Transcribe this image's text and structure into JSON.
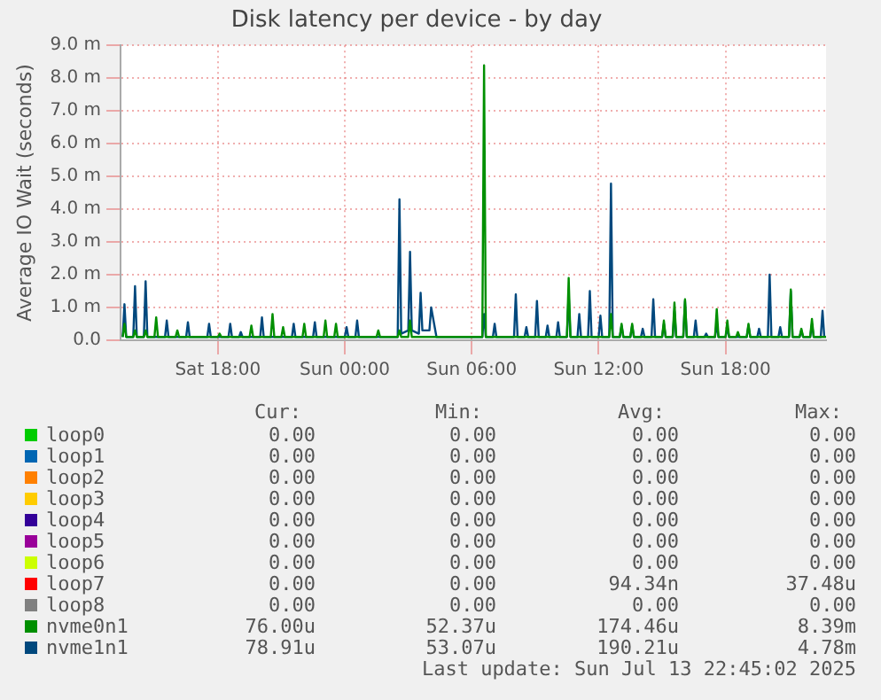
{
  "chart_data": {
    "type": "line",
    "title": "Disk latency per device - by day",
    "ylabel": "Average IO Wait (seconds)",
    "xlim": [
      "2025-07-12T13:24",
      "2025-07-13T22:45"
    ],
    "xticks": [
      {
        "value": "2025-07-12T18:00",
        "label": "Sat 18:00"
      },
      {
        "value": "2025-07-13T00:00",
        "label": "Sun 00:00"
      },
      {
        "value": "2025-07-13T06:00",
        "label": "Sun 06:00"
      },
      {
        "value": "2025-07-13T12:00",
        "label": "Sun 12:00"
      },
      {
        "value": "2025-07-13T18:00",
        "label": "Sun 18:00"
      }
    ],
    "ylim": [
      0,
      9
    ],
    "yticks": [
      {
        "value": 0,
        "label": "0.0"
      },
      {
        "value": 1,
        "label": "1.0 m"
      },
      {
        "value": 2,
        "label": "2.0 m"
      },
      {
        "value": 3,
        "label": "3.0 m"
      },
      {
        "value": 4,
        "label": "4.0 m"
      },
      {
        "value": 5,
        "label": "5.0 m"
      },
      {
        "value": 6,
        "label": "6.0 m"
      },
      {
        "value": 7,
        "label": "7.0 m"
      },
      {
        "value": 8,
        "label": "8.0 m"
      },
      {
        "value": 9,
        "label": "9.0 m"
      }
    ],
    "grid": true,
    "legend": "bottom",
    "series": [
      {
        "name": "loop0",
        "color": "#00cc00"
      },
      {
        "name": "loop1",
        "color": "#0066b3"
      },
      {
        "name": "loop2",
        "color": "#ff8000"
      },
      {
        "name": "loop3",
        "color": "#ffcc00"
      },
      {
        "name": "loop4",
        "color": "#330099"
      },
      {
        "name": "loop5",
        "color": "#990099"
      },
      {
        "name": "loop6",
        "color": "#ccff00"
      },
      {
        "name": "loop7",
        "color": "#ff0000"
      },
      {
        "name": "loop8",
        "color": "#808080"
      },
      {
        "name": "nvme0n1",
        "color": "#008f00",
        "x": [
          "2025-07-12T13:30",
          "2025-07-12T13:35",
          "2025-07-12T13:40",
          "2025-07-12T14:00",
          "2025-07-12T14:05",
          "2025-07-12T14:10",
          "2025-07-12T14:30",
          "2025-07-12T14:35",
          "2025-07-12T14:40",
          "2025-07-12T15:00",
          "2025-07-12T15:05",
          "2025-07-12T15:10",
          "2025-07-12T16:00",
          "2025-07-12T16:05",
          "2025-07-12T16:10",
          "2025-07-12T18:00",
          "2025-07-12T18:05",
          "2025-07-12T18:10",
          "2025-07-12T19:30",
          "2025-07-12T19:35",
          "2025-07-12T19:40",
          "2025-07-12T20:30",
          "2025-07-12T20:35",
          "2025-07-12T20:40",
          "2025-07-12T21:00",
          "2025-07-12T21:05",
          "2025-07-12T21:10",
          "2025-07-12T22:00",
          "2025-07-12T22:05",
          "2025-07-12T22:10",
          "2025-07-12T23:00",
          "2025-07-12T23:05",
          "2025-07-12T23:10",
          "2025-07-12T23:30",
          "2025-07-12T23:35",
          "2025-07-12T23:40",
          "2025-07-13T01:30",
          "2025-07-13T01:35",
          "2025-07-13T01:40",
          "2025-07-13T02:30",
          "2025-07-13T02:35",
          "2025-07-13T02:40",
          "2025-07-13T03:00",
          "2025-07-13T03:05",
          "2025-07-13T03:10",
          "2025-07-13T06:30",
          "2025-07-13T06:35",
          "2025-07-13T06:40",
          "2025-07-13T10:30",
          "2025-07-13T10:35",
          "2025-07-13T10:40",
          "2025-07-13T12:30",
          "2025-07-13T12:35",
          "2025-07-13T12:40",
          "2025-07-13T13:00",
          "2025-07-13T13:05",
          "2025-07-13T13:10",
          "2025-07-13T13:30",
          "2025-07-13T13:35",
          "2025-07-13T13:40",
          "2025-07-13T15:00",
          "2025-07-13T15:05",
          "2025-07-13T15:10",
          "2025-07-13T15:30",
          "2025-07-13T15:35",
          "2025-07-13T15:40",
          "2025-07-13T16:00",
          "2025-07-13T16:05",
          "2025-07-13T16:10",
          "2025-07-13T17:30",
          "2025-07-13T17:35",
          "2025-07-13T17:40",
          "2025-07-13T18:00",
          "2025-07-13T18:05",
          "2025-07-13T18:10",
          "2025-07-13T18:30",
          "2025-07-13T18:35",
          "2025-07-13T18:40",
          "2025-07-13T19:00",
          "2025-07-13T19:05",
          "2025-07-13T19:10",
          "2025-07-13T21:00",
          "2025-07-13T21:05",
          "2025-07-13T21:10",
          "2025-07-13T21:30",
          "2025-07-13T21:35",
          "2025-07-13T21:40",
          "2025-07-13T22:00",
          "2025-07-13T22:05",
          "2025-07-13T22:10",
          "2025-07-13T22:45"
        ],
        "values": [
          0.1,
          0.5,
          0.1,
          0.1,
          0.3,
          0.1,
          0.1,
          0.3,
          0.1,
          0.1,
          0.7,
          0.1,
          0.1,
          0.3,
          0.1,
          0.1,
          0.2,
          0.1,
          0.1,
          0.45,
          0.1,
          0.1,
          0.8,
          0.1,
          0.1,
          0.4,
          0.1,
          0.1,
          0.5,
          0.1,
          0.1,
          0.6,
          0.1,
          0.1,
          0.5,
          0.1,
          0.1,
          0.3,
          0.1,
          0.1,
          0.3,
          0.1,
          0.1,
          0.6,
          0.1,
          0.1,
          8.39,
          0.1,
          0.1,
          1.9,
          0.1,
          0.1,
          0.8,
          0.1,
          0.1,
          0.5,
          0.1,
          0.1,
          0.5,
          0.1,
          0.1,
          0.6,
          0.1,
          0.1,
          1.15,
          0.1,
          0.1,
          1.25,
          0.1,
          0.1,
          0.95,
          0.1,
          0.1,
          0.6,
          0.1,
          0.1,
          0.25,
          0.1,
          0.1,
          0.5,
          0.1,
          0.1,
          1.55,
          0.1,
          0.1,
          0.35,
          0.1,
          0.1,
          0.65,
          0.1,
          0.1
        ]
      },
      {
        "name": "nvme1n1",
        "color": "#00487d",
        "x": [
          "2025-07-12T13:30",
          "2025-07-12T13:35",
          "2025-07-12T13:40",
          "2025-07-12T14:00",
          "2025-07-12T14:05",
          "2025-07-12T14:10",
          "2025-07-12T14:30",
          "2025-07-12T14:35",
          "2025-07-12T14:40",
          "2025-07-12T15:30",
          "2025-07-12T15:35",
          "2025-07-12T15:40",
          "2025-07-12T16:30",
          "2025-07-12T16:35",
          "2025-07-12T16:40",
          "2025-07-12T17:30",
          "2025-07-12T17:35",
          "2025-07-12T17:40",
          "2025-07-12T18:30",
          "2025-07-12T18:35",
          "2025-07-12T18:40",
          "2025-07-12T19:00",
          "2025-07-12T19:05",
          "2025-07-12T19:10",
          "2025-07-12T20:00",
          "2025-07-12T20:05",
          "2025-07-12T20:10",
          "2025-07-12T21:30",
          "2025-07-12T21:35",
          "2025-07-12T21:40",
          "2025-07-12T22:30",
          "2025-07-12T22:35",
          "2025-07-12T22:40",
          "2025-07-13T00:00",
          "2025-07-13T00:05",
          "2025-07-13T00:10",
          "2025-07-13T00:30",
          "2025-07-13T00:35",
          "2025-07-13T00:40",
          "2025-07-13T02:30",
          "2025-07-13T02:35",
          "2025-07-13T02:40",
          "2025-07-13T03:00",
          "2025-07-13T03:05",
          "2025-07-13T03:10",
          "2025-07-13T03:30",
          "2025-07-13T03:35",
          "2025-07-13T03:40",
          "2025-07-13T04:00",
          "2025-07-13T04:05",
          "2025-07-13T04:20",
          "2025-07-13T06:30",
          "2025-07-13T06:35",
          "2025-07-13T06:40",
          "2025-07-13T07:00",
          "2025-07-13T07:05",
          "2025-07-13T07:10",
          "2025-07-13T08:00",
          "2025-07-13T08:05",
          "2025-07-13T08:10",
          "2025-07-13T08:30",
          "2025-07-13T08:35",
          "2025-07-13T08:40",
          "2025-07-13T09:00",
          "2025-07-13T09:05",
          "2025-07-13T09:10",
          "2025-07-13T09:30",
          "2025-07-13T09:35",
          "2025-07-13T09:40",
          "2025-07-13T10:00",
          "2025-07-13T10:05",
          "2025-07-13T10:10",
          "2025-07-13T10:30",
          "2025-07-13T10:35",
          "2025-07-13T10:40",
          "2025-07-13T11:00",
          "2025-07-13T11:05",
          "2025-07-13T11:10",
          "2025-07-13T11:30",
          "2025-07-13T11:35",
          "2025-07-13T11:40",
          "2025-07-13T12:00",
          "2025-07-13T12:05",
          "2025-07-13T12:10",
          "2025-07-13T12:30",
          "2025-07-13T12:35",
          "2025-07-13T12:40",
          "2025-07-13T13:00",
          "2025-07-13T13:05",
          "2025-07-13T13:10",
          "2025-07-13T13:30",
          "2025-07-13T13:35",
          "2025-07-13T13:40",
          "2025-07-13T14:00",
          "2025-07-13T14:05",
          "2025-07-13T14:10",
          "2025-07-13T14:30",
          "2025-07-13T14:35",
          "2025-07-13T14:40",
          "2025-07-13T15:00",
          "2025-07-13T15:05",
          "2025-07-13T15:10",
          "2025-07-13T15:30",
          "2025-07-13T15:35",
          "2025-07-13T15:40",
          "2025-07-13T16:00",
          "2025-07-13T16:05",
          "2025-07-13T16:10",
          "2025-07-13T16:30",
          "2025-07-13T16:35",
          "2025-07-13T16:40",
          "2025-07-13T17:00",
          "2025-07-13T17:05",
          "2025-07-13T17:10",
          "2025-07-13T17:30",
          "2025-07-13T17:35",
          "2025-07-13T17:40",
          "2025-07-13T18:00",
          "2025-07-13T18:05",
          "2025-07-13T18:10",
          "2025-07-13T19:00",
          "2025-07-13T19:05",
          "2025-07-13T19:10",
          "2025-07-13T19:30",
          "2025-07-13T19:35",
          "2025-07-13T19:40",
          "2025-07-13T20:00",
          "2025-07-13T20:05",
          "2025-07-13T20:10",
          "2025-07-13T20:30",
          "2025-07-13T20:35",
          "2025-07-13T20:40",
          "2025-07-13T21:00",
          "2025-07-13T21:05",
          "2025-07-13T21:10",
          "2025-07-13T21:30",
          "2025-07-13T21:35",
          "2025-07-13T21:40",
          "2025-07-13T22:00",
          "2025-07-13T22:05",
          "2025-07-13T22:10",
          "2025-07-13T22:30",
          "2025-07-13T22:35",
          "2025-07-13T22:40"
        ],
        "values": [
          0.1,
          1.1,
          0.1,
          0.1,
          1.65,
          0.1,
          0.1,
          1.8,
          0.1,
          0.1,
          0.6,
          0.1,
          0.1,
          0.55,
          0.1,
          0.1,
          0.5,
          0.1,
          0.1,
          0.5,
          0.1,
          0.1,
          0.25,
          0.1,
          0.1,
          0.7,
          0.1,
          0.1,
          0.5,
          0.1,
          0.1,
          0.55,
          0.1,
          0.1,
          0.4,
          0.1,
          0.1,
          0.6,
          0.1,
          0.1,
          4.3,
          0.2,
          0.3,
          2.7,
          0.3,
          0.2,
          1.45,
          0.3,
          0.3,
          1.0,
          0.1,
          0.1,
          0.8,
          0.1,
          0.1,
          0.5,
          0.1,
          0.1,
          1.4,
          0.1,
          0.1,
          0.4,
          0.1,
          0.1,
          1.2,
          0.1,
          0.1,
          0.45,
          0.1,
          0.1,
          0.55,
          0.1,
          0.1,
          1.4,
          0.1,
          0.1,
          0.8,
          0.1,
          0.1,
          1.5,
          0.1,
          0.1,
          0.75,
          0.1,
          0.1,
          4.78,
          0.1,
          0.1,
          0.45,
          0.1,
          0.1,
          0.45,
          0.1,
          0.1,
          0.35,
          0.1,
          0.1,
          1.25,
          0.1,
          0.1,
          0.5,
          0.1,
          0.1,
          0.9,
          0.1,
          0.1,
          1.2,
          0.1,
          0.1,
          0.6,
          0.1,
          0.1,
          0.2,
          0.1,
          0.1,
          0.5,
          0.1,
          0.1,
          0.4,
          0.1,
          0.1,
          0.45,
          0.1,
          0.1,
          0.35,
          0.1,
          0.1,
          2.0,
          0.1,
          0.1,
          0.4,
          0.1,
          0.1,
          1.5,
          0.1,
          0.1,
          0.3,
          0.1,
          0.1,
          0.5,
          0.1,
          0.1,
          0.9,
          0.1
        ]
      }
    ],
    "annotations": [
      "Cur:",
      "Min:",
      "Avg:",
      "Max:",
      "0.00",
      "0.00",
      "0.00",
      "0.00",
      "0.00",
      "0.00",
      "0.00",
      "0.00",
      "0.00",
      "0.00",
      "0.00",
      "0.00",
      "0.00",
      "0.00",
      "0.00",
      "0.00",
      "0.00",
      "0.00",
      "0.00",
      "0.00",
      "0.00",
      "0.00",
      "0.00",
      "0.00",
      "0.00",
      "0.00",
      "0.00",
      "0.00",
      "0.00",
      "0.00",
      "94.34n",
      "37.48u",
      "0.00",
      "0.00",
      "0.00",
      "0.00",
      "76.00u",
      "52.37u",
      "174.46u",
      "8.39m",
      "78.91u",
      "53.07u",
      "190.21u",
      "4.78m",
      "Last update: Sun Jul 13 22:45:02 2025"
    ]
  }
}
